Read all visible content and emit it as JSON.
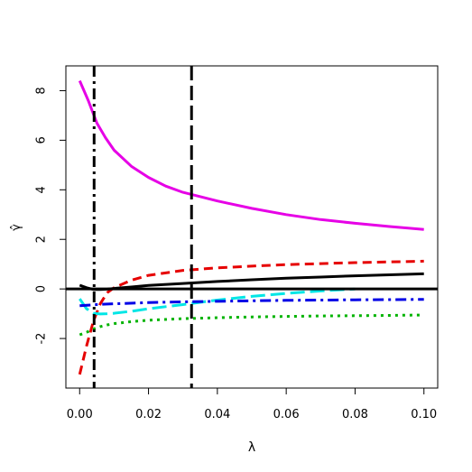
{
  "chart_data": {
    "type": "line",
    "title": "",
    "xlabel": "λ",
    "ylabel": "γ̂",
    "xlim": [
      -0.004,
      0.104
    ],
    "ylim": [
      -4.0,
      9.0
    ],
    "xticks": [
      0.0,
      0.02,
      0.04,
      0.06,
      0.08,
      0.1
    ],
    "xtick_labels": [
      "0.00",
      "0.02",
      "0.04",
      "0.06",
      "0.08",
      "0.10"
    ],
    "yticks": [
      -2,
      0,
      2,
      4,
      6,
      8
    ],
    "ytick_labels": [
      "-2",
      "0",
      "2",
      "4",
      "6",
      "8"
    ],
    "grid": false,
    "legend": "none",
    "hlines": [
      {
        "y": 0,
        "color": "#000000",
        "dash": "solid",
        "width": 3
      }
    ],
    "vlines": [
      {
        "x": 0.0042,
        "color": "#000000",
        "dash": "dashdot",
        "width": 3
      },
      {
        "x": 0.0325,
        "color": "#000000",
        "dash": "longdash",
        "width": 3
      }
    ],
    "series": [
      {
        "color": "#e600e6",
        "dash": "solid",
        "x": [
          0.0,
          0.0025,
          0.005,
          0.0075,
          0.01,
          0.015,
          0.02,
          0.025,
          0.03,
          0.04,
          0.05,
          0.06,
          0.07,
          0.08,
          0.09,
          0.1
        ],
        "y": [
          8.4,
          7.6,
          6.7,
          6.1,
          5.6,
          4.95,
          4.5,
          4.15,
          3.9,
          3.55,
          3.25,
          3.0,
          2.8,
          2.65,
          2.52,
          2.4
        ]
      },
      {
        "color": "#e60000",
        "dash": "dashed",
        "x": [
          0.0,
          0.002,
          0.004,
          0.006,
          0.008,
          0.01,
          0.015,
          0.02,
          0.03,
          0.04,
          0.05,
          0.06,
          0.07,
          0.08,
          0.09,
          0.1
        ],
        "y": [
          -3.45,
          -2.3,
          -1.3,
          -0.6,
          -0.15,
          0.05,
          0.35,
          0.55,
          0.75,
          0.85,
          0.92,
          0.98,
          1.02,
          1.06,
          1.09,
          1.12
        ]
      },
      {
        "color": "#000000",
        "dash": "solid",
        "x": [
          0.0,
          0.002,
          0.004,
          0.006,
          0.008,
          0.01,
          0.015,
          0.02,
          0.03,
          0.04,
          0.05,
          0.06,
          0.07,
          0.08,
          0.09,
          0.1
        ],
        "y": [
          0.15,
          0.05,
          -0.02,
          -0.02,
          -0.01,
          0.02,
          0.08,
          0.14,
          0.22,
          0.3,
          0.37,
          0.43,
          0.48,
          0.53,
          0.57,
          0.61
        ]
      },
      {
        "color": "#00e6e6",
        "dash": "longdash",
        "x": [
          0.0,
          0.002,
          0.004,
          0.006,
          0.008,
          0.01,
          0.015,
          0.02,
          0.03,
          0.04,
          0.05,
          0.06,
          0.07,
          0.08
        ],
        "y": [
          -0.4,
          -0.8,
          -0.98,
          -1.01,
          -1.0,
          -0.98,
          -0.9,
          -0.8,
          -0.63,
          -0.45,
          -0.3,
          -0.18,
          -0.08,
          0.0
        ]
      },
      {
        "color": "#0000e6",
        "dash": "dashdot",
        "x": [
          0.0,
          0.002,
          0.004,
          0.006,
          0.01,
          0.02,
          0.03,
          0.04,
          0.05,
          0.06,
          0.07,
          0.08,
          0.09,
          0.1
        ],
        "y": [
          -0.68,
          -0.66,
          -0.64,
          -0.62,
          -0.6,
          -0.55,
          -0.52,
          -0.5,
          -0.48,
          -0.46,
          -0.45,
          -0.44,
          -0.43,
          -0.42
        ]
      },
      {
        "color": "#00b300",
        "dash": "dotted",
        "x": [
          0.0,
          0.002,
          0.004,
          0.006,
          0.008,
          0.01,
          0.015,
          0.02,
          0.03,
          0.04,
          0.05,
          0.06,
          0.07,
          0.08,
          0.09,
          0.1
        ],
        "y": [
          -1.85,
          -1.75,
          -1.62,
          -1.52,
          -1.45,
          -1.4,
          -1.32,
          -1.26,
          -1.2,
          -1.16,
          -1.13,
          -1.11,
          -1.09,
          -1.08,
          -1.07,
          -1.05
        ]
      }
    ]
  }
}
